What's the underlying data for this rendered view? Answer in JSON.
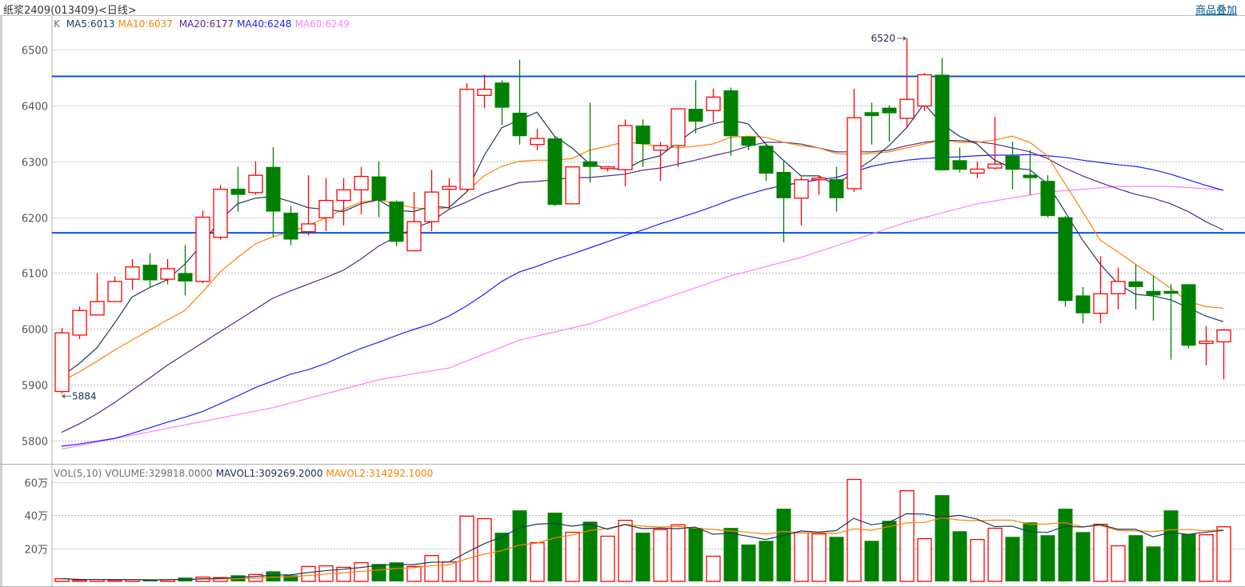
{
  "header": {
    "title": "纸浆2409(013409)<日线>",
    "overlay_link": "商品叠加"
  },
  "colors": {
    "up": "#ff0000",
    "down": "#008000",
    "ma5": "#1a3a5c",
    "ma10": "#ff8000",
    "ma20": "#5a2a8a",
    "ma40": "#1e1eff",
    "ma60": "#ff80ff",
    "hline": "#0055ee",
    "vol_label": "#707070"
  },
  "chart_data": {
    "type": "candlestick",
    "title": "纸浆2409(013409)<日线>",
    "legend": {
      "k": "K",
      "ma5": "MA5:6013",
      "ma10": "MA10:6037",
      "ma20": "MA20:6177",
      "ma40": "MA40:6248",
      "ma60": "MA60:6249"
    },
    "ylim": [
      5770,
      6530
    ],
    "yticks": [
      "6500",
      "6400",
      "6300",
      "6200",
      "6100",
      "6000",
      "5900",
      "5800"
    ],
    "ytick_values": [
      6500,
      6400,
      6300,
      6200,
      6100,
      6000,
      5900,
      5800
    ],
    "grid": true,
    "hlines": [
      6452,
      6172
    ],
    "annotations": {
      "high_label": "6520",
      "high_value": 6520,
      "high_index": 48,
      "low_label": "5884",
      "low_value": 5884,
      "low_index": 0
    },
    "ohlc": [
      [
        5888,
        6002,
        5884,
        5993
      ],
      [
        5989,
        6040,
        5982,
        6033
      ],
      [
        6025,
        6100,
        6024,
        6049
      ],
      [
        6049,
        6094,
        6048,
        6085
      ],
      [
        6089,
        6125,
        6070,
        6111
      ],
      [
        6115,
        6135,
        6075,
        6087
      ],
      [
        6089,
        6125,
        6080,
        6108
      ],
      [
        6100,
        6150,
        6060,
        6085
      ],
      [
        6085,
        6212,
        6082,
        6200
      ],
      [
        6164,
        6258,
        6160,
        6250
      ],
      [
        6251,
        6290,
        6210,
        6240
      ],
      [
        6244,
        6300,
        6240,
        6275
      ],
      [
        6290,
        6325,
        6165,
        6210
      ],
      [
        6208,
        6220,
        6150,
        6160
      ],
      [
        6174,
        6275,
        6167,
        6188
      ],
      [
        6199,
        6270,
        6175,
        6230
      ],
      [
        6230,
        6270,
        6185,
        6249
      ],
      [
        6249,
        6290,
        6205,
        6273
      ],
      [
        6273,
        6300,
        6200,
        6230
      ],
      [
        6228,
        6230,
        6148,
        6156
      ],
      [
        6140,
        6245,
        6140,
        6192
      ],
      [
        6192,
        6285,
        6175,
        6245
      ],
      [
        6250,
        6270,
        6215,
        6255
      ],
      [
        6250,
        6440,
        6250,
        6429
      ],
      [
        6418,
        6455,
        6395,
        6429
      ],
      [
        6441,
        6445,
        6365,
        6396
      ],
      [
        6387,
        6482,
        6330,
        6345
      ],
      [
        6330,
        6358,
        6320,
        6341
      ],
      [
        6341,
        6345,
        6220,
        6222
      ],
      [
        6224,
        6290,
        6225,
        6290
      ],
      [
        6300,
        6405,
        6262,
        6290
      ],
      [
        6287,
        6290,
        6282,
        6290
      ],
      [
        6285,
        6375,
        6255,
        6364
      ],
      [
        6364,
        6375,
        6290,
        6331
      ],
      [
        6320,
        6335,
        6265,
        6328
      ],
      [
        6328,
        6395,
        6290,
        6394
      ],
      [
        6394,
        6445,
        6350,
        6371
      ],
      [
        6391,
        6430,
        6370,
        6415
      ],
      [
        6427,
        6432,
        6310,
        6345
      ],
      [
        6344,
        6345,
        6320,
        6328
      ],
      [
        6328,
        6330,
        6265,
        6278
      ],
      [
        6281,
        6300,
        6155,
        6234
      ],
      [
        6234,
        6272,
        6185,
        6267
      ],
      [
        6267,
        6275,
        6240,
        6270
      ],
      [
        6268,
        6290,
        6210,
        6234
      ],
      [
        6251,
        6430,
        6245,
        6378
      ],
      [
        6388,
        6405,
        6330,
        6381
      ],
      [
        6396,
        6400,
        6335,
        6386
      ],
      [
        6377,
        6520,
        6360,
        6411
      ],
      [
        6399,
        6458,
        6390,
        6455
      ],
      [
        6455,
        6485,
        6283,
        6284
      ],
      [
        6302,
        6325,
        6280,
        6285
      ],
      [
        6279,
        6300,
        6270,
        6286
      ],
      [
        6288,
        6380,
        6285,
        6295
      ],
      [
        6310,
        6335,
        6250,
        6285
      ],
      [
        6276,
        6320,
        6240,
        6270
      ],
      [
        6265,
        6275,
        6200,
        6202
      ],
      [
        6200,
        6202,
        6040,
        6050
      ],
      [
        6060,
        6075,
        6010,
        6028
      ],
      [
        6028,
        6130,
        6010,
        6063
      ],
      [
        6063,
        6110,
        6035,
        6085
      ],
      [
        6085,
        6115,
        6035,
        6075
      ],
      [
        6068,
        6095,
        6015,
        6060
      ],
      [
        6068,
        6080,
        5945,
        6063
      ],
      [
        6080,
        6080,
        5965,
        5970
      ],
      [
        5974,
        6005,
        5935,
        5978
      ],
      [
        5977,
        6000,
        5910,
        5998
      ]
    ],
    "ma": {
      "ma5": [
        5915,
        5938,
        5966,
        6010,
        6057,
        6074,
        6088,
        6116,
        6152,
        6195,
        6224,
        6234,
        6237,
        6228,
        6217,
        6214,
        6210,
        6224,
        6231,
        6212,
        6210,
        6220,
        6217,
        6245,
        6310,
        6360,
        6374,
        6388,
        6345,
        6324,
        6295,
        6288,
        6285,
        6302,
        6310,
        6334,
        6357,
        6367,
        6374,
        6367,
        6331,
        6302,
        6274,
        6274,
        6257,
        6281,
        6302,
        6328,
        6360,
        6403,
        6367,
        6345,
        6331,
        6302,
        6288,
        6285,
        6260,
        6210,
        6159,
        6116,
        6081,
        6062,
        6059,
        6052,
        6038,
        6023,
        6013
      ],
      "ma10": [
        5906,
        5923,
        5942,
        5962,
        5980,
        5998,
        6016,
        6033,
        6066,
        6102,
        6128,
        6152,
        6165,
        6174,
        6185,
        6199,
        6214,
        6227,
        6231,
        6224,
        6217,
        6214,
        6217,
        6245,
        6274,
        6291,
        6300,
        6302,
        6302,
        6305,
        6320,
        6327,
        6335,
        6331,
        6327,
        6324,
        6327,
        6331,
        6343,
        6345,
        6343,
        6334,
        6328,
        6324,
        6314,
        6312,
        6314,
        6317,
        6324,
        6331,
        6338,
        6334,
        6334,
        6338,
        6345,
        6334,
        6310,
        6260,
        6210,
        6159,
        6138,
        6116,
        6095,
        6073,
        6049,
        6040,
        6037
      ],
      "ma20": [
        5815,
        5830,
        5848,
        5868,
        5890,
        5912,
        5935,
        5955,
        5975,
        5995,
        6015,
        6035,
        6055,
        6068,
        6080,
        6092,
        6105,
        6125,
        6148,
        6165,
        6180,
        6192,
        6214,
        6227,
        6242,
        6252,
        6262,
        6264,
        6267,
        6271,
        6271,
        6274,
        6277,
        6284,
        6288,
        6295,
        6302,
        6310,
        6317,
        6327,
        6334,
        6334,
        6331,
        6324,
        6317,
        6317,
        6317,
        6320,
        6328,
        6334,
        6338,
        6337,
        6335,
        6331,
        6324,
        6317,
        6305,
        6288,
        6274,
        6262,
        6251,
        6241,
        6234,
        6224,
        6210,
        6192,
        6177
      ],
      "ma40": [
        5790,
        5794,
        5799,
        5804,
        5813,
        5823,
        5833,
        5842,
        5852,
        5866,
        5880,
        5895,
        5907,
        5919,
        5927,
        5938,
        5952,
        5965,
        5976,
        5988,
        5999,
        6009,
        6023,
        6041,
        6062,
        6085,
        6102,
        6112,
        6124,
        6134,
        6145,
        6156,
        6167,
        6177,
        6188,
        6198,
        6208,
        6219,
        6231,
        6241,
        6250,
        6257,
        6262,
        6267,
        6271,
        6281,
        6291,
        6297,
        6302,
        6305,
        6307,
        6308,
        6310,
        6311,
        6311,
        6312,
        6310,
        6307,
        6302,
        6298,
        6294,
        6291,
        6285,
        6277,
        6267,
        6257,
        6248
      ],
      "ma60": [
        [
          0,
          5785
        ],
        [
          12,
          5859
        ],
        [
          18,
          5909
        ],
        [
          22,
          5930
        ],
        [
          26,
          5980
        ],
        [
          30,
          6009
        ],
        [
          34,
          6052
        ],
        [
          38,
          6095
        ],
        [
          42,
          6128
        ],
        [
          45,
          6159
        ],
        [
          48,
          6191
        ],
        [
          52,
          6224
        ],
        [
          56,
          6245
        ],
        [
          60,
          6255
        ],
        [
          63,
          6255
        ],
        [
          66,
          6249
        ]
      ]
    },
    "volume": {
      "unit": "万",
      "legend": {
        "name": "VOL(5,10)",
        "volume": "VOLUME:329818.0000",
        "mavol1": "MAVOL1:309269.2000",
        "mavol2": "MAVOL2:314292.1000"
      },
      "yticks": [
        "60万",
        "40万",
        "20万"
      ],
      "ytick_values": [
        60,
        40,
        20
      ],
      "values": [
        1.6,
        0.8,
        1.1,
        0.8,
        1.1,
        0.8,
        1.1,
        2.3,
        2.6,
        2.3,
        3.7,
        4.2,
        6.1,
        3.7,
        9.0,
        9.4,
        8.5,
        11.3,
        10.5,
        11.5,
        9.0,
        15.6,
        11.8,
        39.4,
        37.9,
        29.4,
        42.9,
        23.4,
        41.5,
        29.7,
        36.1,
        27.3,
        36.9,
        29.4,
        31.3,
        34.2,
        32.3,
        15.2,
        32.3,
        22.3,
        24.5,
        43.9,
        29.4,
        28.7,
        26.9,
        61.6,
        24.5,
        36.6,
        54.8,
        25.8,
        52.1,
        30.3,
        25.3,
        32.1,
        26.9,
        35.6,
        27.9,
        43.9,
        29.8,
        34.5,
        21.5,
        27.9,
        21.1,
        42.9,
        28.7,
        28.2,
        32.98
      ],
      "mavol_periods": [
        5,
        10
      ]
    }
  }
}
